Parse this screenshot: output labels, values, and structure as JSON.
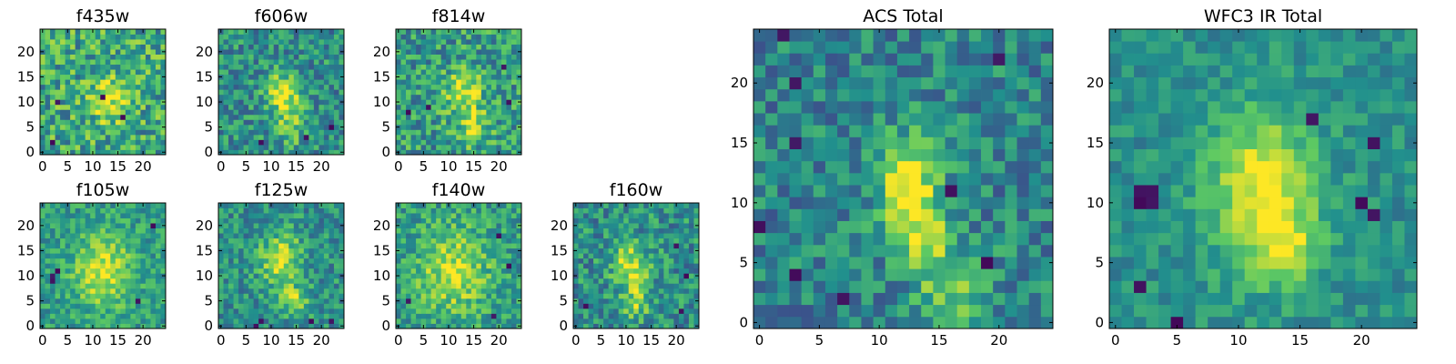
{
  "figure": {
    "colormap": "viridis",
    "colormap_stops": [
      "#440154",
      "#3b528b",
      "#21908d",
      "#5dc963",
      "#fde725"
    ],
    "note_values": "Pixel intensities are shown normalized 0-1 per panel; no colorbar is printed."
  },
  "chart_data": [
    {
      "type": "heatmap",
      "id": "f435w",
      "title": "f435w",
      "grid": [
        25,
        25
      ],
      "xlim": [
        0,
        24
      ],
      "ylim": [
        0,
        24
      ],
      "x_ticks": [
        "0",
        "5",
        "10",
        "15",
        "20"
      ],
      "y_ticks": [
        "0",
        "5",
        "10",
        "15",
        "20"
      ],
      "texture_seed": 11,
      "noise": 0.55,
      "base": 0.6,
      "blobs": [
        {
          "cx": 13,
          "cy": 11,
          "sx": 2.5,
          "sy": 3.5,
          "amp": 0.35
        }
      ],
      "dark_spots": [
        {
          "x": 3,
          "y": 10
        },
        {
          "x": 12,
          "y": 11
        },
        {
          "x": 2,
          "y": 2
        },
        {
          "x": 16,
          "y": 7
        }
      ]
    },
    {
      "type": "heatmap",
      "id": "f606w",
      "title": "f606w",
      "grid": [
        25,
        25
      ],
      "xlim": [
        0,
        24
      ],
      "ylim": [
        0,
        24
      ],
      "x_ticks": [
        "0",
        "5",
        "10",
        "15",
        "20"
      ],
      "y_ticks": [
        "0",
        "5",
        "10",
        "15",
        "20"
      ],
      "texture_seed": 23,
      "noise": 0.45,
      "base": 0.5,
      "blobs": [
        {
          "cx": 12,
          "cy": 12,
          "sx": 2.2,
          "sy": 2.5,
          "amp": 0.5
        },
        {
          "cx": 14,
          "cy": 6,
          "sx": 2,
          "sy": 3,
          "amp": 0.3
        }
      ],
      "dark_spots": [
        {
          "x": 8,
          "y": 2
        },
        {
          "x": 17,
          "y": 3
        },
        {
          "x": 22,
          "y": 5
        }
      ]
    },
    {
      "type": "heatmap",
      "id": "f814w",
      "title": "f814w",
      "grid": [
        25,
        25
      ],
      "xlim": [
        0,
        24
      ],
      "ylim": [
        0,
        24
      ],
      "x_ticks": [
        "0",
        "5",
        "10",
        "15",
        "20"
      ],
      "y_ticks": [
        "0",
        "5",
        "10",
        "15",
        "20"
      ],
      "texture_seed": 37,
      "noise": 0.5,
      "base": 0.55,
      "blobs": [
        {
          "cx": 13,
          "cy": 12,
          "sx": 2.5,
          "sy": 3,
          "amp": 0.4
        },
        {
          "cx": 15,
          "cy": 5,
          "sx": 2.5,
          "sy": 2.5,
          "amp": 0.3
        }
      ],
      "dark_spots": [
        {
          "x": 2,
          "y": 8
        },
        {
          "x": 6,
          "y": 9
        },
        {
          "x": 21,
          "y": 17
        },
        {
          "x": 22,
          "y": 10
        }
      ]
    },
    {
      "type": "heatmap",
      "id": "f105w",
      "title": "f105w",
      "grid": [
        25,
        25
      ],
      "xlim": [
        0,
        24
      ],
      "ylim": [
        0,
        24
      ],
      "x_ticks": [
        "0",
        "5",
        "10",
        "15",
        "20"
      ],
      "y_ticks": [
        "0",
        "5",
        "10",
        "15",
        "20"
      ],
      "texture_seed": 41,
      "noise": 0.35,
      "base": 0.55,
      "blobs": [
        {
          "cx": 12,
          "cy": 11,
          "sx": 4,
          "sy": 5,
          "amp": 0.4
        }
      ],
      "dark_spots": [
        {
          "x": 2,
          "y": 10
        },
        {
          "x": 3,
          "y": 11
        },
        {
          "x": 2,
          "y": 9
        },
        {
          "x": 19,
          "y": 5
        },
        {
          "x": 22,
          "y": 20
        }
      ]
    },
    {
      "type": "heatmap",
      "id": "f125w",
      "title": "f125w",
      "grid": [
        25,
        25
      ],
      "xlim": [
        0,
        24
      ],
      "ylim": [
        0,
        24
      ],
      "x_ticks": [
        "0",
        "5",
        "10",
        "15",
        "20"
      ],
      "y_ticks": [
        "0",
        "5",
        "10",
        "15",
        "20"
      ],
      "texture_seed": 53,
      "noise": 0.4,
      "base": 0.5,
      "blobs": [
        {
          "cx": 12,
          "cy": 13,
          "sx": 3,
          "sy": 4,
          "amp": 0.4
        },
        {
          "cx": 15,
          "cy": 5,
          "sx": 2,
          "sy": 2,
          "amp": 0.3
        }
      ],
      "dark_spots": [
        {
          "x": 8,
          "y": 1
        },
        {
          "x": 7,
          "y": 0
        },
        {
          "x": 22,
          "y": 1
        },
        {
          "x": 18,
          "y": 1
        }
      ]
    },
    {
      "type": "heatmap",
      "id": "f140w",
      "title": "f140w",
      "grid": [
        25,
        25
      ],
      "xlim": [
        0,
        24
      ],
      "ylim": [
        0,
        24
      ],
      "x_ticks": [
        "0",
        "5",
        "10",
        "15",
        "20"
      ],
      "y_ticks": [
        "0",
        "5",
        "10",
        "15",
        "20"
      ],
      "texture_seed": 67,
      "noise": 0.4,
      "base": 0.55,
      "blobs": [
        {
          "cx": 11,
          "cy": 11,
          "sx": 5,
          "sy": 6,
          "amp": 0.35
        }
      ],
      "dark_spots": [
        {
          "x": 20,
          "y": 18
        },
        {
          "x": 22,
          "y": 12
        },
        {
          "x": 19,
          "y": 2
        },
        {
          "x": 2,
          "y": 5
        }
      ]
    },
    {
      "type": "heatmap",
      "id": "f160w",
      "title": "f160w",
      "grid": [
        25,
        25
      ],
      "xlim": [
        0,
        24
      ],
      "ylim": [
        0,
        24
      ],
      "x_ticks": [
        "0",
        "5",
        "10",
        "15",
        "20"
      ],
      "y_ticks": [
        "0",
        "5",
        "10",
        "15",
        "20"
      ],
      "texture_seed": 79,
      "noise": 0.45,
      "base": 0.5,
      "blobs": [
        {
          "cx": 11,
          "cy": 12,
          "sx": 2.5,
          "sy": 3,
          "amp": 0.45
        },
        {
          "cx": 12,
          "cy": 5,
          "sx": 2,
          "sy": 2.5,
          "amp": 0.3
        }
      ],
      "dark_spots": [
        {
          "x": 2,
          "y": 4
        },
        {
          "x": 20,
          "y": 16
        },
        {
          "x": 22,
          "y": 10
        },
        {
          "x": 21,
          "y": 3
        }
      ]
    },
    {
      "type": "heatmap",
      "id": "acs_total",
      "title": "ACS Total",
      "grid": [
        25,
        25
      ],
      "xlim": [
        0,
        24
      ],
      "ylim": [
        0,
        24
      ],
      "x_ticks": [
        "0",
        "5",
        "10",
        "15",
        "20"
      ],
      "y_ticks": [
        "0",
        "5",
        "10",
        "15",
        "20"
      ],
      "texture_seed": 97,
      "noise": 0.4,
      "base": 0.45,
      "blobs": [
        {
          "cx": 12.5,
          "cy": 11.5,
          "sx": 1.8,
          "sy": 3,
          "amp": 0.55
        },
        {
          "cx": 16,
          "cy": 3,
          "sx": 2,
          "sy": 2.5,
          "amp": 0.35
        },
        {
          "cx": 13.5,
          "cy": 7,
          "sx": 1.5,
          "sy": 1.5,
          "amp": 0.3
        }
      ],
      "dark_spots": [
        {
          "x": 2,
          "y": 24
        },
        {
          "x": 3,
          "y": 20
        },
        {
          "x": 3,
          "y": 15
        },
        {
          "x": 3,
          "y": 4
        },
        {
          "x": 7,
          "y": 2
        },
        {
          "x": 16,
          "y": 11
        },
        {
          "x": 0,
          "y": 8
        },
        {
          "x": 19,
          "y": 5
        },
        {
          "x": 20,
          "y": 22
        }
      ]
    },
    {
      "type": "heatmap",
      "id": "wfc3_ir_total",
      "title": "WFC3 IR Total",
      "grid": [
        25,
        25
      ],
      "xlim": [
        0,
        24
      ],
      "ylim": [
        0,
        24
      ],
      "x_ticks": [
        "0",
        "5",
        "10",
        "15",
        "20"
      ],
      "y_ticks": [
        "0",
        "5",
        "10",
        "15",
        "20"
      ],
      "texture_seed": 113,
      "noise": 0.25,
      "base": 0.5,
      "blobs": [
        {
          "cx": 12,
          "cy": 11,
          "sx": 3,
          "sy": 4.5,
          "amp": 0.5
        },
        {
          "cx": 14,
          "cy": 6,
          "sx": 2,
          "sy": 2,
          "amp": 0.25
        }
      ],
      "dark_spots": [
        {
          "x": 2,
          "y": 10
        },
        {
          "x": 3,
          "y": 11
        },
        {
          "x": 2,
          "y": 11
        },
        {
          "x": 3,
          "y": 10
        },
        {
          "x": 2,
          "y": 3
        },
        {
          "x": 5,
          "y": 0
        },
        {
          "x": 20,
          "y": 10
        },
        {
          "x": 21,
          "y": 9
        },
        {
          "x": 21,
          "y": 15
        },
        {
          "x": 16,
          "y": 17
        }
      ]
    }
  ]
}
